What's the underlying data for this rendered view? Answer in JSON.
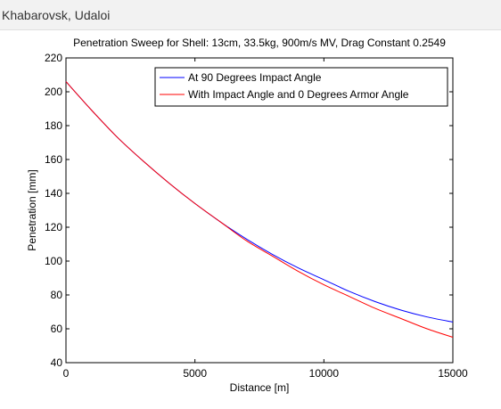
{
  "header": {
    "title": "Khabarovsk, Udaloi"
  },
  "colors": {
    "header_bg": "#f2f2f2",
    "series_90": "#0000ff",
    "series_armor": "#ff0000",
    "axis": "#000000"
  },
  "chart_data": {
    "type": "line",
    "title": "Penetration Sweep for Shell: 13cm, 33.5kg, 900m/s MV, Drag Constant 0.2549",
    "xlabel": "Distance [m]",
    "ylabel": "Penetration [mm]",
    "xlim": [
      0,
      15000
    ],
    "ylim": [
      40,
      220
    ],
    "xticks": [
      0,
      5000,
      10000,
      15000
    ],
    "yticks": [
      40,
      60,
      80,
      100,
      120,
      140,
      160,
      180,
      200,
      220
    ],
    "grid": false,
    "legend_position": "top-right",
    "series": [
      {
        "name": "At 90 Degrees Impact Angle",
        "color": "#0000ff",
        "x": [
          0,
          1000,
          2000,
          3000,
          4000,
          5000,
          6000,
          7000,
          8000,
          9000,
          10000,
          11000,
          12000,
          13000,
          14000,
          15000
        ],
        "y": [
          206,
          189,
          173,
          159,
          146,
          134,
          123,
          113,
          104,
          96,
          89,
          82,
          76,
          71,
          67,
          64
        ]
      },
      {
        "name": "With Impact Angle and 0 Degrees Armor Angle",
        "color": "#ff0000",
        "x": [
          0,
          1000,
          2000,
          3000,
          4000,
          5000,
          6000,
          7000,
          8000,
          9000,
          10000,
          11000,
          12000,
          13000,
          14000,
          15000
        ],
        "y": [
          206,
          189,
          173,
          159,
          146,
          134,
          123,
          112,
          103,
          94,
          86,
          79,
          72,
          66,
          60,
          55
        ]
      }
    ]
  }
}
